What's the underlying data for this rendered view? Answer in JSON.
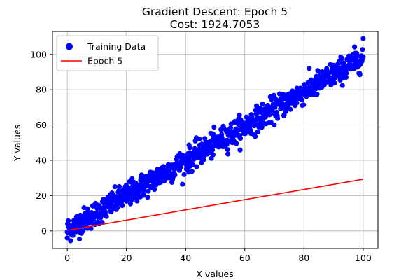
{
  "chart_data": {
    "type": "scatter",
    "title": "Gradient Descent: Epoch 5",
    "subtitle": "Cost: 1924.7053",
    "xlabel": "X values",
    "ylabel": "Y values",
    "xlim": [
      -5,
      105
    ],
    "ylim": [
      -10,
      113
    ],
    "xticks": [
      0,
      20,
      40,
      60,
      80,
      100
    ],
    "yticks": [
      0,
      20,
      40,
      60,
      80,
      100
    ],
    "grid": true,
    "legend_position": "top-left",
    "series": [
      {
        "name": "Training Data",
        "kind": "scatter",
        "color": "#0000ff",
        "trend": {
          "x_min": 0,
          "x_max": 100,
          "slope": 0.98,
          "intercept": 0.5,
          "noise": 3.5,
          "count": 900
        },
        "highlights": [
          {
            "x": 100,
            "y": 109
          },
          {
            "x": 0,
            "y": -4
          }
        ]
      },
      {
        "name": "Epoch 5",
        "kind": "line",
        "color": "#ff0000",
        "x": [
          0,
          100
        ],
        "y": [
          0.3,
          29.3
        ]
      }
    ]
  }
}
